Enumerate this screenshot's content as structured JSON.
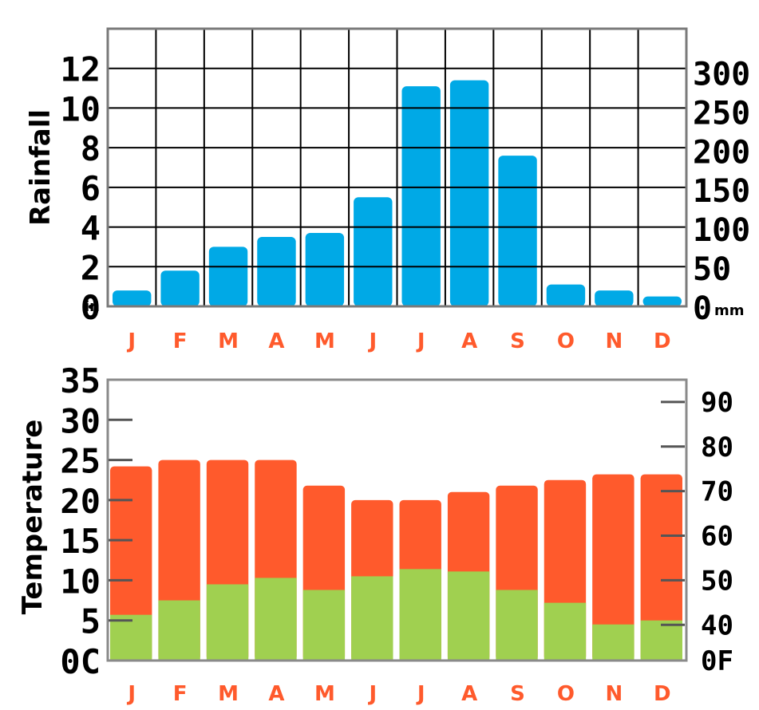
{
  "chart_data": [
    {
      "type": "bar",
      "ylabel": "Rainfall",
      "categories": [
        "J",
        "F",
        "M",
        "A",
        "M",
        "J",
        "J",
        "A",
        "S",
        "O",
        "N",
        "D"
      ],
      "series": [
        {
          "values": [
            0.8,
            1.8,
            3.0,
            3.5,
            3.7,
            5.5,
            11.1,
            11.4,
            7.6,
            1.1,
            0.8,
            0.5
          ],
          "color": "#00a9e6"
        }
      ],
      "ylim": [
        0,
        14
      ],
      "yticks": [
        "0",
        "2",
        "4",
        "6",
        "8",
        "10",
        "12"
      ],
      "y_left_unit": "in",
      "y2lim_mm": [
        0,
        355.6
      ],
      "y2ticks": [
        "0",
        "50",
        "100",
        "150",
        "200",
        "250",
        "300"
      ],
      "y_right_unit": "mm",
      "grid": true
    },
    {
      "type": "bar",
      "ylabel": "Temperature",
      "categories": [
        "J",
        "F",
        "M",
        "A",
        "M",
        "J",
        "J",
        "A",
        "S",
        "O",
        "N",
        "D"
      ],
      "series": [
        {
          "values": [
            24.2,
            25.0,
            25.0,
            25.0,
            21.8,
            20.0,
            20.0,
            21.0,
            21.8,
            22.5,
            23.2,
            23.2
          ],
          "color": "#ff5a2c"
        },
        {
          "values": [
            5.7,
            7.5,
            9.5,
            10.3,
            8.8,
            10.5,
            11.4,
            11.1,
            8.8,
            7.2,
            4.5,
            5.0
          ],
          "color": "#a0d050"
        }
      ],
      "ylim": [
        0,
        35
      ],
      "yticks": [
        "0C",
        "5",
        "10",
        "15",
        "20",
        "25",
        "30",
        "35"
      ],
      "y2ticks": [
        "0F",
        "40",
        "50",
        "60",
        "70",
        "80",
        "90"
      ],
      "grid": false
    }
  ]
}
